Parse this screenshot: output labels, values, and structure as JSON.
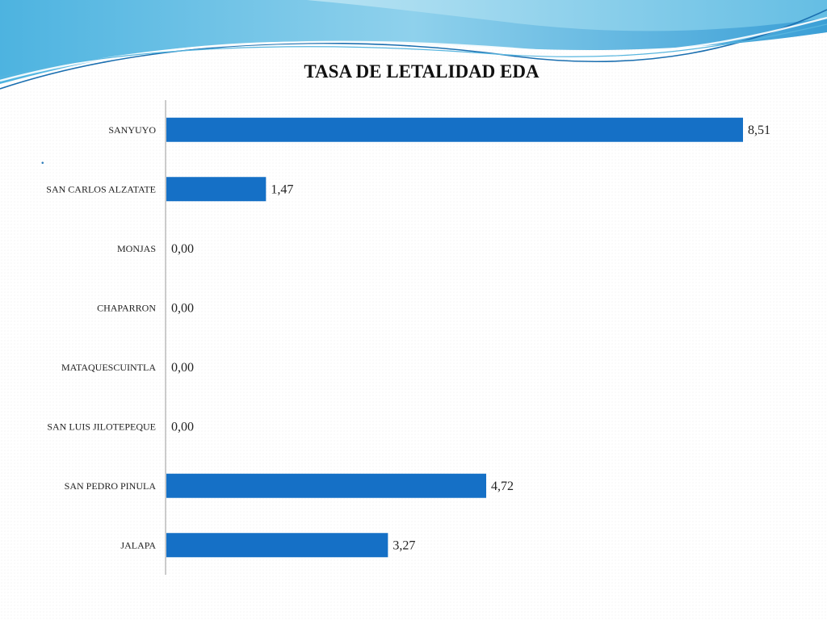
{
  "chart_data": {
    "type": "bar",
    "orientation": "horizontal",
    "title": "TASA DE LETALIDAD EDA",
    "categories": [
      "SANYUYO",
      "SAN CARLOS ALZATATE",
      "MONJAS",
      "CHAPARRON",
      "MATAQUESCUINTLA",
      "SAN LUIS JILOTEPEQUE",
      "SAN PEDRO PINULA",
      "JALAPA"
    ],
    "values": [
      8.51,
      1.47,
      0.0,
      0.0,
      0.0,
      0.0,
      4.72,
      3.27
    ],
    "data_labels": [
      "8,51",
      "1,47",
      "0,00",
      "0,00",
      "0,00",
      "0,00",
      "4,72",
      "3,27"
    ],
    "xlim": [
      0,
      8.51
    ],
    "grid": false,
    "bar_color": "#1570c6"
  },
  "slide": {
    "bullet": "."
  },
  "colors": {
    "wave_dark": "#3aa0d8",
    "wave_light": "#a8dcef"
  }
}
